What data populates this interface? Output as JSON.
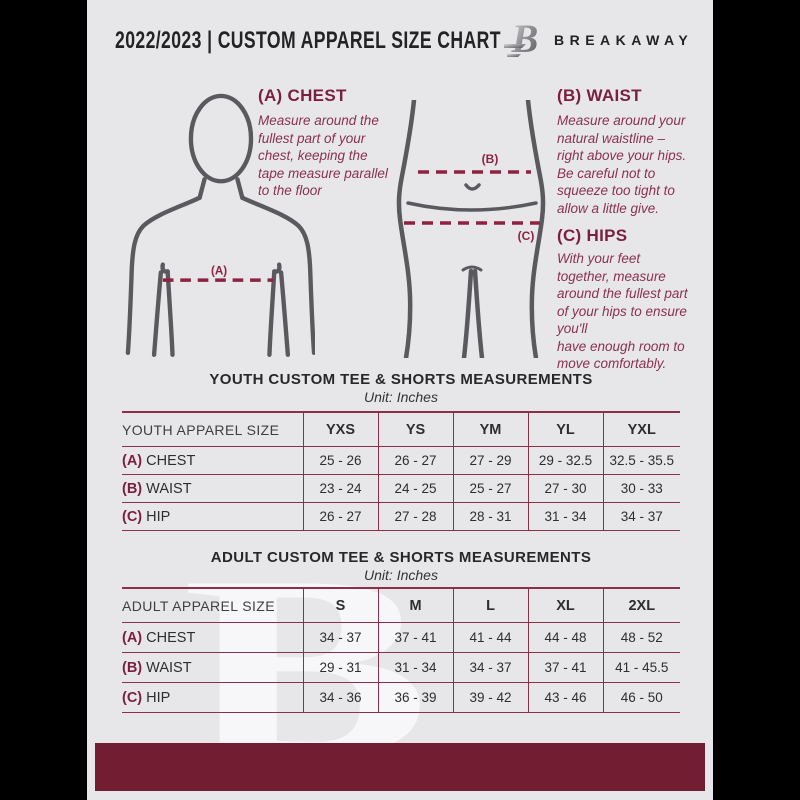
{
  "header": {
    "title": "2022/2023  |  CUSTOM APPAREL SIZE CHART",
    "brand": "BREAKAWAY"
  },
  "measure_guide": {
    "chest": {
      "heading": "(A) CHEST",
      "figure_label": "(A)",
      "body": "Measure around the\nfullest part of your\nchest, keeping the\ntape measure parallel\nto the floor"
    },
    "waist": {
      "heading": "(B) WAIST",
      "figure_label": "(B)",
      "body": "Measure around your\nnatural waistline –\nright above your hips.\nBe careful not to\nsqueeze too tight to\nallow a little give."
    },
    "hips": {
      "heading": "(C) HIPS",
      "figure_label": "(C)",
      "body": "With your feet\ntogether, measure\naround the fullest part\nof your hips to ensure\nyou'll\nhave enough room to\nmove comfortably."
    }
  },
  "tables": {
    "youth": {
      "title": "YOUTH CUSTOM TEE & SHORTS MEASUREMENTS",
      "subtitle": "Unit: Inches",
      "header": [
        "YOUTH APPAREL SIZE",
        "YXS",
        "YS",
        "YM",
        "YL",
        "YXL"
      ],
      "rows": [
        {
          "prefix": "(A)",
          "label": "CHEST",
          "values": [
            "25 - 26",
            "26 - 27",
            "27 - 29",
            "29 - 32.5",
            "32.5 - 35.5"
          ]
        },
        {
          "prefix": "(B)",
          "label": "WAIST",
          "values": [
            "23 - 24",
            "24 - 25",
            "25 - 27",
            "27 - 30",
            "30 - 33"
          ]
        },
        {
          "prefix": "(C)",
          "label": "HIP",
          "values": [
            "26 - 27",
            "27 - 28",
            "28 - 31",
            "31 - 34",
            "34 - 37"
          ]
        }
      ]
    },
    "adult": {
      "title": "ADULT CUSTOM TEE & SHORTS MEASUREMENTS",
      "subtitle": "Unit: Inches",
      "header": [
        "ADULT APPAREL SIZE",
        "S",
        "M",
        "L",
        "XL",
        "2XL"
      ],
      "rows": [
        {
          "prefix": "(A)",
          "label": "CHEST",
          "values": [
            "34 - 37",
            "37 - 41",
            "41 - 44",
            "44 - 48",
            "48 - 52"
          ]
        },
        {
          "prefix": "(B)",
          "label": "WAIST",
          "values": [
            "29 - 31",
            "31 - 34",
            "34 - 37",
            "37 - 41",
            "41 - 45.5"
          ]
        },
        {
          "prefix": "(C)",
          "label": "HIP",
          "values": [
            "34 - 36",
            "36 - 39",
            "39 - 42",
            "43 - 46",
            "46 - 50"
          ]
        }
      ]
    }
  },
  "watermark_letter": "B",
  "colors": {
    "maroon_footer": "#721d32",
    "maroon_heading": "#7b1f3e",
    "maroon_body_text": "#8a3051",
    "table_line": "#8e2f49",
    "page_background": "#e7e7e9",
    "dark_text": "#2e2e30",
    "figure_stroke": "#5a5a5e"
  }
}
